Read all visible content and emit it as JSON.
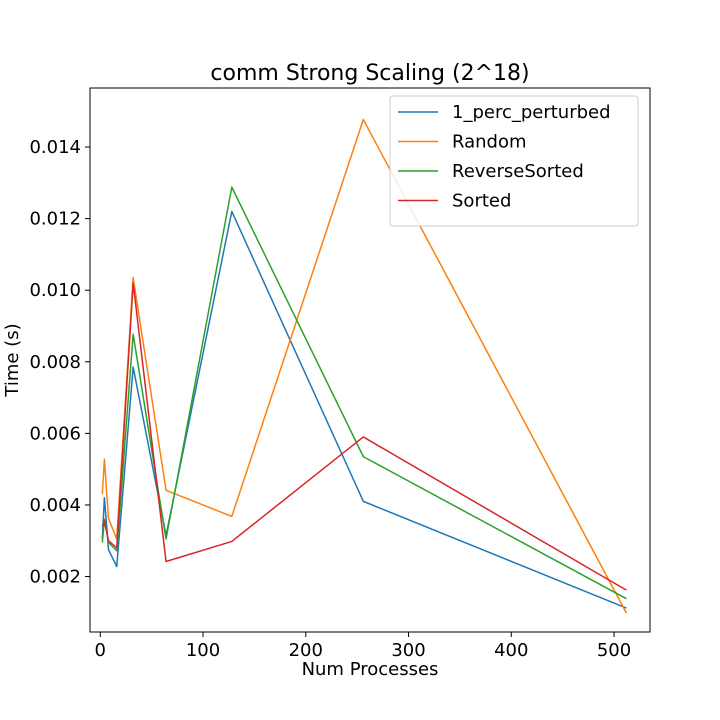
{
  "chart_data": {
    "type": "line",
    "title": "comm Strong Scaling (2^18)",
    "xlabel": "Num Processes",
    "ylabel": "Time (s)",
    "xlim": [
      -10,
      535
    ],
    "ylim": [
      0.00045,
      0.01565
    ],
    "xticks": [
      0,
      100,
      200,
      300,
      400,
      500
    ],
    "xtick_labels": [
      "0",
      "100",
      "200",
      "300",
      "400",
      "500"
    ],
    "yticks": [
      0.002,
      0.004,
      0.006,
      0.008,
      0.01,
      0.012,
      0.014
    ],
    "ytick_labels": [
      "0.002",
      "0.004",
      "0.006",
      "0.008",
      "0.010",
      "0.012",
      "0.014"
    ],
    "x": [
      2,
      4,
      8,
      16,
      32,
      64,
      128,
      256,
      512
    ],
    "legend_position": "top-right",
    "grid": false,
    "series": [
      {
        "name": "1_perc_perturbed",
        "color": "#1f77b4",
        "values": [
          0.00305,
          0.0042,
          0.00275,
          0.00228,
          0.00785,
          0.00315,
          0.0122,
          0.0041,
          0.00112
        ]
      },
      {
        "name": "Random",
        "color": "#ff7f0e",
        "values": [
          0.0043,
          0.00528,
          0.00362,
          0.00305,
          0.01035,
          0.00441,
          0.00368,
          0.01477,
          0.00098
        ]
      },
      {
        "name": "ReverseSorted",
        "color": "#2ca02c",
        "values": [
          0.00295,
          0.0036,
          0.00295,
          0.00272,
          0.00877,
          0.00305,
          0.01288,
          0.00535,
          0.00138
        ]
      },
      {
        "name": "Sorted",
        "color": "#d62728",
        "values": [
          0.0034,
          0.00355,
          0.003,
          0.0028,
          0.0102,
          0.00242,
          0.00298,
          0.0059,
          0.00162
        ]
      }
    ]
  }
}
